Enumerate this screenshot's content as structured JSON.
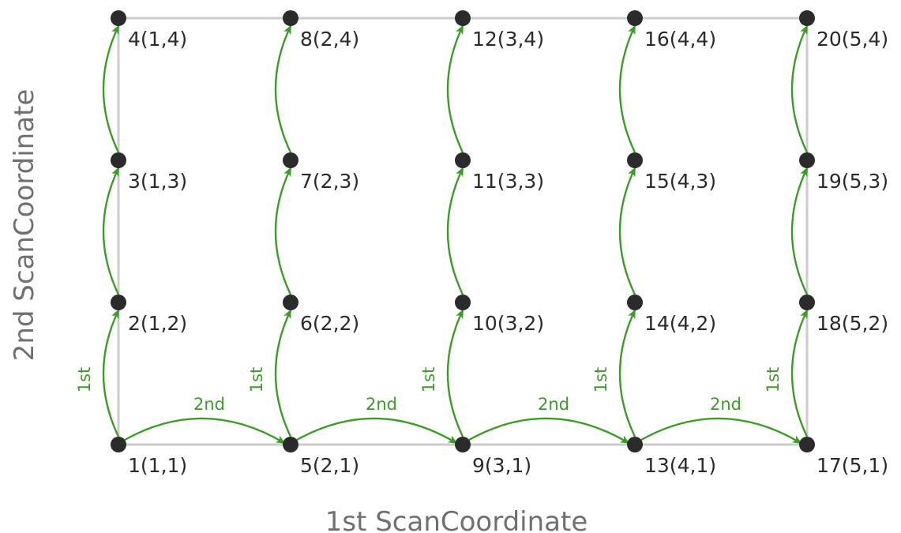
{
  "x_axis_label": "1st ScanCoordinate",
  "y_axis_label": "2nd ScanCoordinate",
  "colors": {
    "arrow": "#3a9e24",
    "node": "#2b2b2b",
    "grid": "#cccccc",
    "axis_text": "#707070"
  },
  "grid": {
    "columns": 5,
    "rows": 4
  },
  "nodes": [
    {
      "index": 1,
      "i": 1,
      "j": 1,
      "label": "1(1,1)"
    },
    {
      "index": 2,
      "i": 1,
      "j": 2,
      "label": "2(1,2)"
    },
    {
      "index": 3,
      "i": 1,
      "j": 3,
      "label": "3(1,3)"
    },
    {
      "index": 4,
      "i": 1,
      "j": 4,
      "label": "4(1,4)"
    },
    {
      "index": 5,
      "i": 2,
      "j": 1,
      "label": "5(2,1)"
    },
    {
      "index": 6,
      "i": 2,
      "j": 2,
      "label": "6(2,2)"
    },
    {
      "index": 7,
      "i": 2,
      "j": 3,
      "label": "7(2,3)"
    },
    {
      "index": 8,
      "i": 2,
      "j": 4,
      "label": "8(2,4)"
    },
    {
      "index": 9,
      "i": 3,
      "j": 1,
      "label": "9(3,1)"
    },
    {
      "index": 10,
      "i": 3,
      "j": 2,
      "label": "10(3,2)"
    },
    {
      "index": 11,
      "i": 3,
      "j": 3,
      "label": "11(3,3)"
    },
    {
      "index": 12,
      "i": 3,
      "j": 4,
      "label": "12(3,4)"
    },
    {
      "index": 13,
      "i": 4,
      "j": 1,
      "label": "13(4,1)"
    },
    {
      "index": 14,
      "i": 4,
      "j": 2,
      "label": "14(4,2)"
    },
    {
      "index": 15,
      "i": 4,
      "j": 3,
      "label": "15(4,3)"
    },
    {
      "index": 16,
      "i": 4,
      "j": 4,
      "label": "16(4,4)"
    },
    {
      "index": 17,
      "i": 5,
      "j": 1,
      "label": "17(5,1)"
    },
    {
      "index": 18,
      "i": 5,
      "j": 2,
      "label": "18(5,2)"
    },
    {
      "index": 19,
      "i": 5,
      "j": 3,
      "label": "19(5,3)"
    },
    {
      "index": 20,
      "i": 5,
      "j": 4,
      "label": "20(5,4)"
    }
  ],
  "first_scan_label": "1st",
  "second_scan_label": "2nd",
  "first_scan_arrows": [
    {
      "from": 1,
      "to": 2,
      "labeled": true
    },
    {
      "from": 2,
      "to": 3,
      "labeled": false
    },
    {
      "from": 3,
      "to": 4,
      "labeled": false
    },
    {
      "from": 5,
      "to": 6,
      "labeled": true
    },
    {
      "from": 6,
      "to": 7,
      "labeled": false
    },
    {
      "from": 7,
      "to": 8,
      "labeled": false
    },
    {
      "from": 9,
      "to": 10,
      "labeled": true
    },
    {
      "from": 10,
      "to": 11,
      "labeled": false
    },
    {
      "from": 11,
      "to": 12,
      "labeled": false
    },
    {
      "from": 13,
      "to": 14,
      "labeled": true
    },
    {
      "from": 14,
      "to": 15,
      "labeled": false
    },
    {
      "from": 15,
      "to": 16,
      "labeled": false
    },
    {
      "from": 17,
      "to": 18,
      "labeled": true
    },
    {
      "from": 18,
      "to": 19,
      "labeled": false
    },
    {
      "from": 19,
      "to": 20,
      "labeled": false
    }
  ],
  "second_scan_arrows": [
    {
      "from": 1,
      "to": 5,
      "labeled": true
    },
    {
      "from": 5,
      "to": 9,
      "labeled": true
    },
    {
      "from": 9,
      "to": 13,
      "labeled": true
    },
    {
      "from": 13,
      "to": 17,
      "labeled": true
    }
  ]
}
